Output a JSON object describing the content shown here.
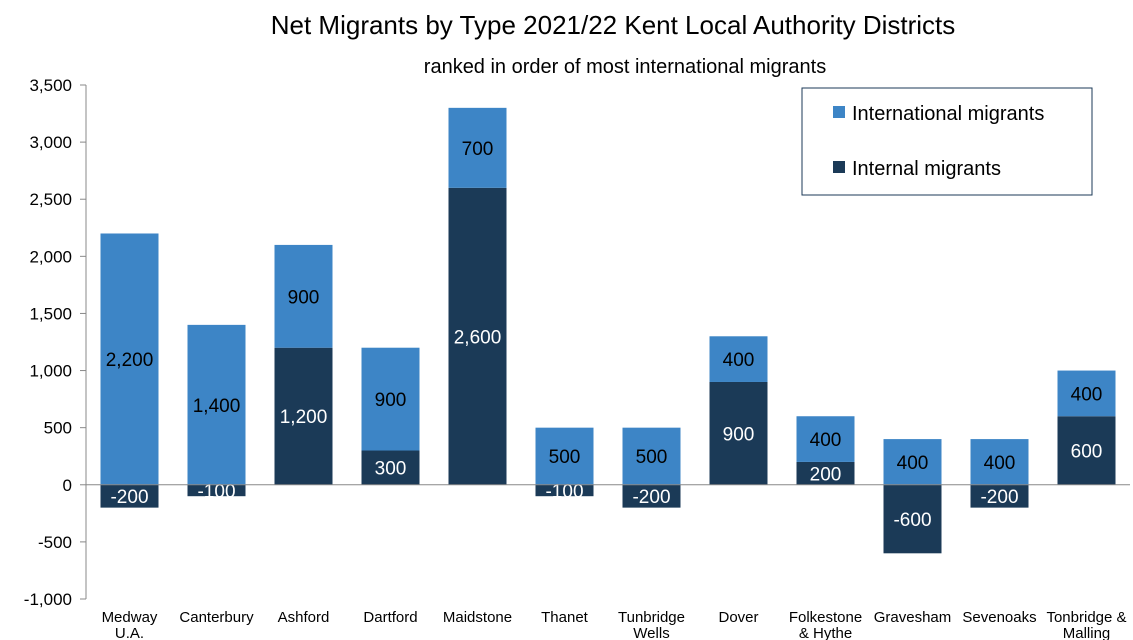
{
  "colors": {
    "international": "#3d85c6",
    "internal": "#1b3a57",
    "label_on_light": "#000000",
    "label_on_dark": "#ffffff"
  },
  "chart_data": {
    "type": "bar",
    "stacked": true,
    "title": "Net Migrants by Type 2021/22 Kent Local Authority Districts",
    "subtitle": "ranked in order of most international migrants",
    "xlabel": "",
    "ylabel": "",
    "ylim": [
      -1000,
      3500
    ],
    "ytick_step": 500,
    "yticks": [
      "-1,000",
      "-500",
      "0",
      "500",
      "1,000",
      "1,500",
      "2,000",
      "2,500",
      "3,000",
      "3,500"
    ],
    "grid": false,
    "legend_position": "top-right",
    "categories": [
      [
        "Medway",
        "U.A."
      ],
      [
        "Canterbury"
      ],
      [
        "Ashford"
      ],
      [
        "Dartford"
      ],
      [
        "Maidstone"
      ],
      [
        "Thanet"
      ],
      [
        "Tunbridge",
        "Wells"
      ],
      [
        "Dover"
      ],
      [
        "Folkestone",
        "& Hythe"
      ],
      [
        "Gravesham"
      ],
      [
        "Sevenoaks"
      ],
      [
        "Tonbridge &",
        "Malling"
      ]
    ],
    "series": [
      {
        "name": "Internal migrants",
        "key": "internal",
        "values": [
          -200,
          -100,
          1200,
          300,
          2600,
          -100,
          -200,
          900,
          200,
          -600,
          -200,
          600
        ],
        "labels": [
          "-200",
          "-100",
          "1,200",
          "300",
          "2,600",
          "-100",
          "-200",
          "900",
          "200",
          "-600",
          "-200",
          "600"
        ]
      },
      {
        "name": "International migrants",
        "key": "international",
        "values": [
          2200,
          1400,
          900,
          900,
          700,
          500,
          500,
          400,
          400,
          400,
          400,
          400
        ],
        "labels": [
          "2,200",
          "1,400",
          "900",
          "900",
          "700",
          "500",
          "500",
          "400",
          "400",
          "400",
          "400",
          "400"
        ]
      }
    ],
    "legend": [
      "International migrants",
      "Internal migrants"
    ]
  }
}
